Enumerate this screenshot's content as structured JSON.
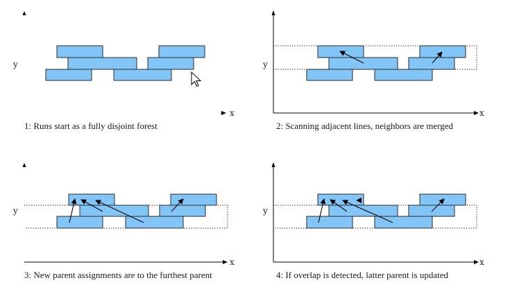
{
  "axis_labels": {
    "x": "x",
    "y": "y"
  },
  "panels": [
    {
      "caption": "1: Runs start as a fully disjoint forest"
    },
    {
      "caption": "2: Scanning adjacent lines, neighbors are merged"
    },
    {
      "caption": "3: New parent assignments are to the furthest parent"
    },
    {
      "caption": "4: If overlap is detected, latter parent is updated"
    }
  ],
  "colors": {
    "run_fill": "#82c6f7",
    "run_stroke": "#2a2a2a",
    "ink": "#000000"
  },
  "icons": [
    "mouse-cursor-icon"
  ]
}
